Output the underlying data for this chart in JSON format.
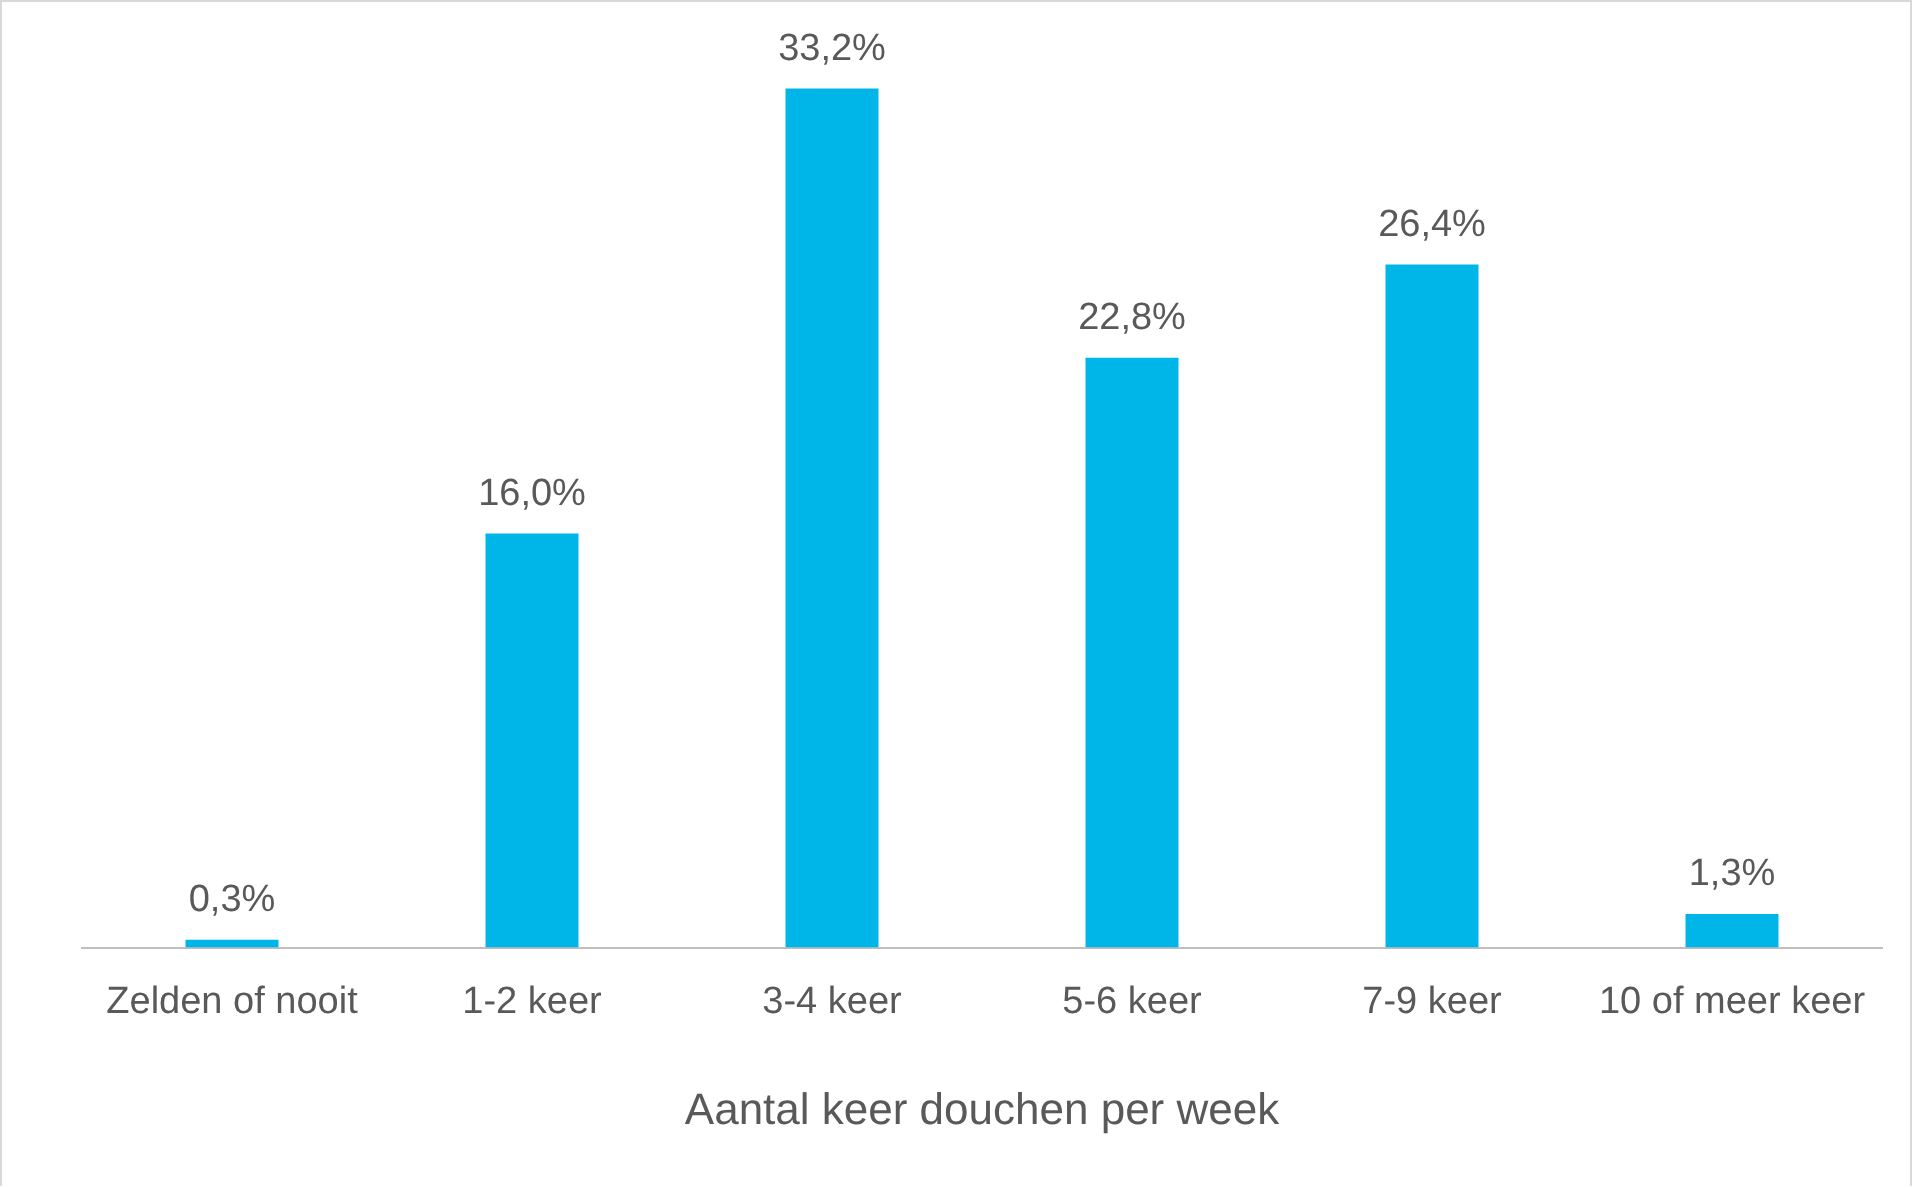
{
  "chart_data": {
    "type": "bar",
    "xlabel": "Aantal keer douchen per week",
    "categories": [
      "Zelden of nooit",
      "1-2 keer",
      "3-4 keer",
      "5-6 keer",
      "7-9 keer",
      "10 of meer keer"
    ],
    "values": [
      0.3,
      16.0,
      33.2,
      22.8,
      26.4,
      1.3
    ],
    "value_labels": [
      "0,3%",
      "16,0%",
      "33,2%",
      "22,8%",
      "26,4%",
      "1,3%"
    ],
    "color": "#00b5e8",
    "grid": false,
    "legend": false,
    "tick_labels": "x"
  }
}
